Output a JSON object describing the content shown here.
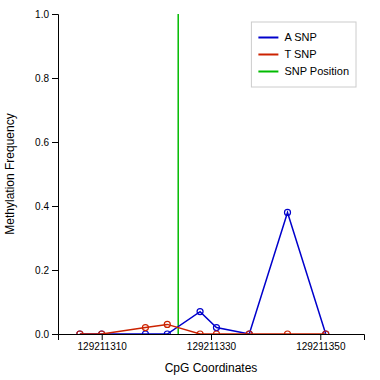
{
  "chart_data": {
    "type": "line",
    "xlabel": "CpG Coordinates",
    "ylabel": "Methylation Frequency",
    "x": [
      129211306,
      129211310,
      129211318,
      129211322,
      129211328,
      129211331,
      129211337,
      129211344,
      129211351
    ],
    "series": [
      {
        "name": "A SNP",
        "color": "#0000CC",
        "marker": "circle",
        "values": [
          0.0,
          0.0,
          0.0,
          0.0,
          0.07,
          0.02,
          0.0,
          0.38,
          0.0
        ]
      },
      {
        "name": "T SNP",
        "color": "#CC2200",
        "marker": "circle",
        "values": [
          0.0,
          0.0,
          0.02,
          0.03,
          0.0,
          0.0,
          0.0,
          0.0,
          0.0
        ]
      }
    ],
    "vline": {
      "name": "SNP Position",
      "color": "#00BB00",
      "x": 129211324
    },
    "xlim": [
      129211302,
      129211358
    ],
    "xticks": [
      129211310,
      129211330,
      129211350
    ],
    "ylim": [
      0.0,
      1.0
    ],
    "yticks": [
      {
        "value": 0.0,
        "label": "0.0"
      },
      0.2,
      0.4,
      0.6,
      0.8,
      {
        "value": 1.0,
        "label": "1.0"
      }
    ],
    "grid": false,
    "legend": "upper right"
  }
}
